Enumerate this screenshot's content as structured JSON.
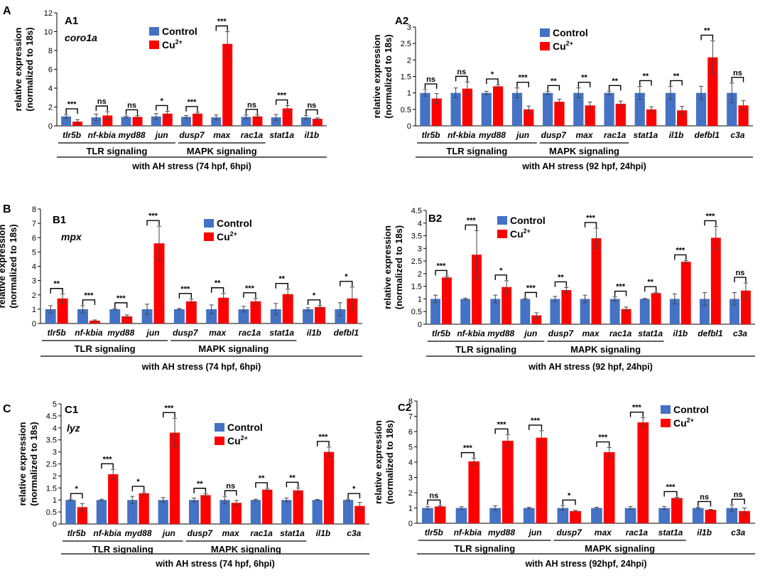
{
  "colors": {
    "control": "#4472c4",
    "treated": "#ff0000",
    "axis": "#000000"
  },
  "legend": {
    "control": "Control",
    "treated_prefix": "Cu",
    "treated_sup": "2+"
  },
  "ylabel_line1": "relative expression",
  "ylabel_line2": "(normalized to 18s)",
  "chart_data": [
    {
      "id": "A1",
      "row_label": "A",
      "panel_label": "A1",
      "gene": "coro1a",
      "type": "bar",
      "ylim": [
        0,
        12
      ],
      "yticks": [
        0,
        2,
        4,
        6,
        8,
        10,
        12
      ],
      "categories": [
        "tlr5b",
        "nf-kbia",
        "myd88",
        "jun",
        "dusp7",
        "max",
        "rac1a",
        "stat1a",
        "il1b"
      ],
      "series": [
        {
          "name": "Control",
          "values": [
            1,
            0.9,
            0.95,
            1,
            0.95,
            0.9,
            0.95,
            0.9,
            0.9
          ],
          "errors": [
            0.2,
            0.35,
            0.1,
            0.3,
            0.15,
            0.25,
            0.2,
            0.3,
            0.2
          ]
        },
        {
          "name": "Cu2+",
          "values": [
            0.45,
            1.1,
            0.95,
            1.3,
            1.3,
            8.7,
            1.0,
            1.85,
            0.75
          ],
          "errors": [
            0.2,
            0.4,
            0.15,
            0.25,
            0.15,
            1.3,
            0.15,
            0.3,
            0.1
          ]
        }
      ],
      "significance": [
        "***",
        "ns",
        "ns",
        "*",
        "***",
        "***",
        "ns",
        "***",
        "ns"
      ],
      "groups": [
        {
          "label": "TLR signaling",
          "from": 0,
          "to": 3
        },
        {
          "label": "MAPK signaling",
          "from": 4,
          "to": 6
        }
      ],
      "condition": "with AH stress   (74 hpf, 6hpi)"
    },
    {
      "id": "A2",
      "panel_label": "A2",
      "gene": "",
      "type": "bar",
      "ylim": [
        0,
        3
      ],
      "yticks": [
        0,
        0.5,
        1,
        1.5,
        2,
        2.5,
        3
      ],
      "categories": [
        "tlr5b",
        "nf-kbia",
        "myd88",
        "jun",
        "dusp7",
        "max",
        "rac1a",
        "stat1a",
        "il1b",
        "defbl1",
        "c3a"
      ],
      "series": [
        {
          "name": "Control",
          "values": [
            1,
            1,
            1,
            1,
            1,
            1,
            1,
            1,
            1,
            1,
            1
          ],
          "errors": [
            0.1,
            0.15,
            0.05,
            0.15,
            0.05,
            0.15,
            0.05,
            0.2,
            0.2,
            0.2,
            0.3
          ]
        },
        {
          "name": "Cu2+",
          "values": [
            0.83,
            1.13,
            1.2,
            0.5,
            0.73,
            0.62,
            0.67,
            0.5,
            0.47,
            2.08,
            0.62
          ]
        },
        {
          "name": "Cu2+ err",
          "values": [
            0.15,
            0.2,
            0.05,
            0.1,
            0.08,
            0.1,
            0.08,
            0.08,
            0.12,
            0.5,
            0.15
          ]
        }
      ],
      "significance": [
        "ns",
        "ns",
        "*",
        "***",
        "**",
        "**",
        "**",
        "**",
        "**",
        "**",
        "ns"
      ],
      "groups": [
        {
          "label": "TLR signaling",
          "from": 0,
          "to": 3
        },
        {
          "label": "MAPK signaling",
          "from": 4,
          "to": 6
        }
      ],
      "condition": "with AH stress   (92 hpf, 24hpi)"
    },
    {
      "id": "B1",
      "row_label": "B",
      "panel_label": "B1",
      "gene": "mpx",
      "type": "bar",
      "ylim": [
        0,
        8
      ],
      "yticks": [
        0,
        1,
        2,
        3,
        4,
        5,
        6,
        7,
        8
      ],
      "categories": [
        "tlr5b",
        "nf-kbia",
        "myd88",
        "jun",
        "dusp7",
        "max",
        "rac1a",
        "stat1a",
        "il1b",
        "defbl1"
      ],
      "series": [
        {
          "name": "Control",
          "values": [
            1,
            1,
            1,
            1,
            1,
            1,
            1,
            1,
            1,
            1
          ],
          "errors": [
            0.25,
            0.25,
            0.05,
            0.35,
            0.05,
            0.3,
            0.2,
            0.4,
            0.1,
            0.45
          ]
        },
        {
          "name": "Cu2+",
          "values": [
            1.75,
            0.2,
            0.5,
            5.6,
            1.55,
            1.8,
            1.55,
            2.05,
            1.15,
            1.75
          ],
          "errors": [
            0.3,
            0.05,
            0.1,
            1.2,
            0.15,
            0.3,
            0.2,
            0.35,
            0.1,
            0.8
          ]
        }
      ],
      "significance": [
        "**",
        "***",
        "***",
        "***",
        "***",
        "**",
        "***",
        "**",
        "*",
        "*"
      ],
      "groups": [
        {
          "label": "TLR signaling",
          "from": 0,
          "to": 3
        },
        {
          "label": "MAPK signaling",
          "from": 4,
          "to": 7
        }
      ],
      "condition": "with AH stress   (74 hpf, 6hpi)"
    },
    {
      "id": "B2",
      "panel_label": "B2",
      "gene": "",
      "type": "bar",
      "ylim": [
        0,
        4.5
      ],
      "yticks": [
        0,
        0.5,
        1,
        1.5,
        2,
        2.5,
        3,
        3.5,
        4,
        4.5
      ],
      "categories": [
        "tlr5b",
        "nf-kbia",
        "myd88",
        "jun",
        "dusp7",
        "max",
        "rac1a",
        "stat1a",
        "il1b",
        "defbl1",
        "c3a"
      ],
      "series": [
        {
          "name": "Control",
          "values": [
            1,
            1,
            1,
            1,
            1,
            1,
            1,
            1,
            1,
            1,
            1
          ],
          "errors": [
            0.15,
            0.03,
            0.15,
            0.03,
            0.1,
            0.15,
            0.08,
            0.02,
            0.2,
            0.25,
            0.25
          ]
        },
        {
          "name": "Cu2+",
          "values": [
            1.85,
            2.75,
            1.47,
            0.35,
            1.35,
            3.4,
            0.6,
            1.23,
            2.47,
            3.42,
            1.33
          ],
          "errors": [
            0.05,
            0.95,
            0.25,
            0.1,
            0.1,
            0.4,
            0.08,
            0.03,
            0.05,
            0.45,
            0.3
          ]
        }
      ],
      "significance": [
        "***",
        "***",
        "*",
        "***",
        "**",
        "***",
        "***",
        "**",
        "***",
        "***",
        "ns"
      ],
      "groups": [
        {
          "label": "TLR signaling",
          "from": 0,
          "to": 3
        },
        {
          "label": "MAPK signaling",
          "from": 4,
          "to": 7
        }
      ],
      "condition": "with AH stress   (92 hpf,  24hpi)"
    },
    {
      "id": "C1",
      "row_label": "C",
      "panel_label": "C1",
      "gene": "lyz",
      "type": "bar",
      "ylim": [
        0,
        5
      ],
      "yticks": [
        0,
        0.5,
        1,
        1.5,
        2,
        2.5,
        3,
        3.5,
        4,
        4.5,
        5
      ],
      "categories": [
        "tlr5b",
        "nf-kbia",
        "myd88",
        "jun",
        "dusp7",
        "max",
        "rac1a",
        "stat1a",
        "il1b",
        "c3a"
      ],
      "series": [
        {
          "name": "Control",
          "values": [
            1,
            1,
            1,
            1,
            1,
            1,
            1,
            1,
            1,
            1
          ],
          "errors": [
            0.03,
            0.03,
            0.15,
            0.1,
            0.08,
            0.15,
            0.03,
            0.08,
            0.02,
            0.03
          ]
        },
        {
          "name": "Cu2+",
          "values": [
            0.7,
            2.07,
            1.28,
            3.8,
            1.2,
            0.88,
            1.43,
            1.4,
            3.0,
            0.75
          ],
          "errors": [
            0.15,
            0.2,
            0.05,
            0.6,
            0.05,
            0.1,
            0.05,
            0.1,
            0.2,
            0.15
          ]
        }
      ],
      "significance": [
        "*",
        "***",
        "*",
        "***",
        "**",
        "ns",
        "**",
        "**",
        "***",
        "*"
      ],
      "groups": [
        {
          "label": "TLR signaling",
          "from": 0,
          "to": 3
        },
        {
          "label": "MAPK signaling",
          "from": 4,
          "to": 7
        }
      ],
      "condition": "with AH stress   (74 hpf, 6hpi)"
    },
    {
      "id": "C2",
      "panel_label": "C2",
      "gene": "",
      "type": "bar",
      "ylim": [
        0,
        8
      ],
      "yticks": [
        0,
        1,
        2,
        3,
        4,
        5,
        6,
        7,
        8
      ],
      "categories": [
        "tlr5b",
        "nf-kbia",
        "myd88",
        "jun",
        "dusp7",
        "max",
        "rac1a",
        "stat1a",
        "il1b",
        "c3a"
      ],
      "series": [
        {
          "name": "Control",
          "values": [
            1,
            1,
            1,
            1,
            1,
            1,
            1,
            1,
            1,
            1
          ],
          "errors": [
            0.1,
            0.08,
            0.15,
            0.05,
            0.15,
            0.05,
            0.1,
            0.1,
            0.05,
            0.2
          ]
        },
        {
          "name": "Cu2+",
          "values": [
            1.1,
            4.05,
            5.4,
            5.6,
            0.8,
            4.65,
            6.6,
            1.65,
            0.88,
            0.8
          ],
          "errors": [
            0.05,
            0.2,
            0.4,
            0.45,
            0.05,
            0.3,
            0.3,
            0.05,
            0.03,
            0.2
          ]
        }
      ],
      "significance": [
        "ns",
        "***",
        "***",
        "***",
        "*",
        "***",
        "***",
        "***",
        "ns",
        "ns"
      ],
      "groups": [
        {
          "label": "TLR signaling",
          "from": 0,
          "to": 3
        },
        {
          "label": "MAPK signaling",
          "from": 4,
          "to": 7
        }
      ],
      "condition": "with AH stress   (92hpf,  24hpi)"
    }
  ]
}
